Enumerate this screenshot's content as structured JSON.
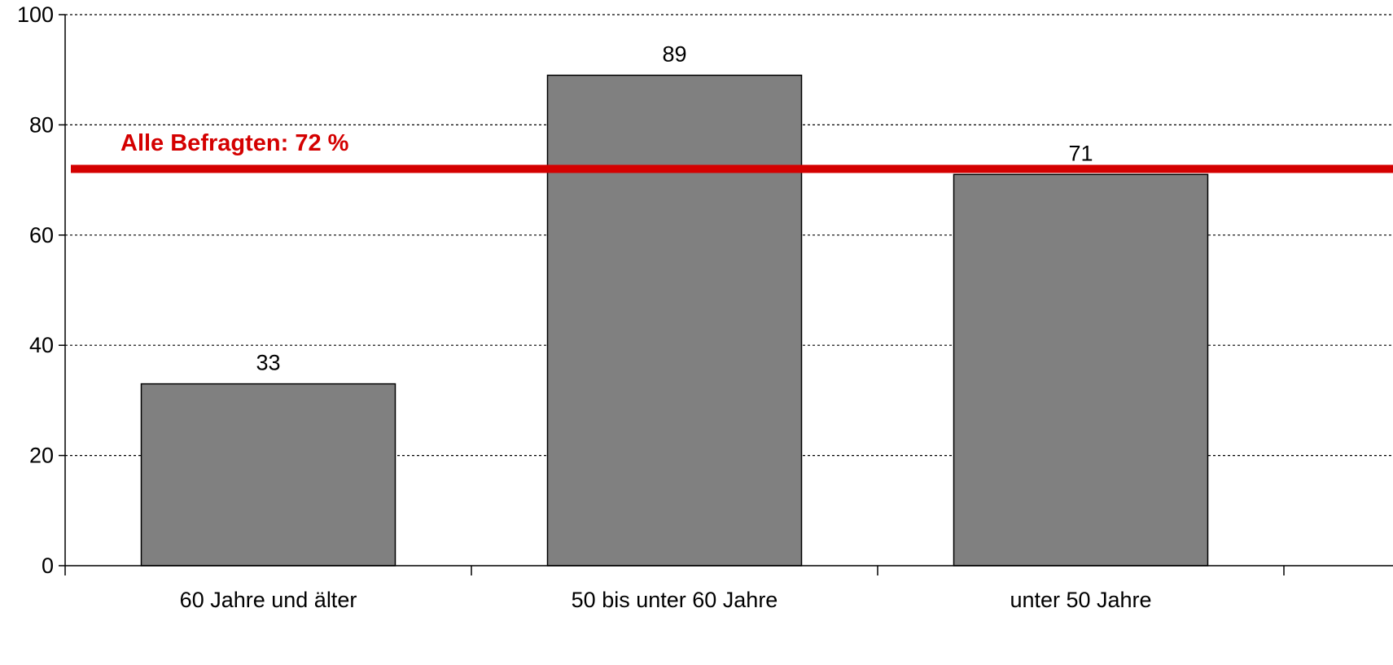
{
  "chart_data": {
    "type": "bar",
    "categories": [
      "60 Jahre und älter",
      "50 bis unter 60 Jahre",
      "unter 50 Jahre"
    ],
    "values": [
      33,
      89,
      71
    ],
    "data_labels": [
      "33",
      "89",
      "71"
    ],
    "ylim": [
      0,
      100
    ],
    "yticks": [
      0,
      20,
      40,
      60,
      80,
      100
    ],
    "ytick_labels": [
      "0",
      "20",
      "40",
      "60",
      "80",
      "100"
    ],
    "grid": "horizontal-dotted",
    "bar_color": "#808080",
    "reference_line": {
      "value": 72,
      "label": "Alle Befragten: 72 %",
      "color": "#d40000"
    }
  }
}
